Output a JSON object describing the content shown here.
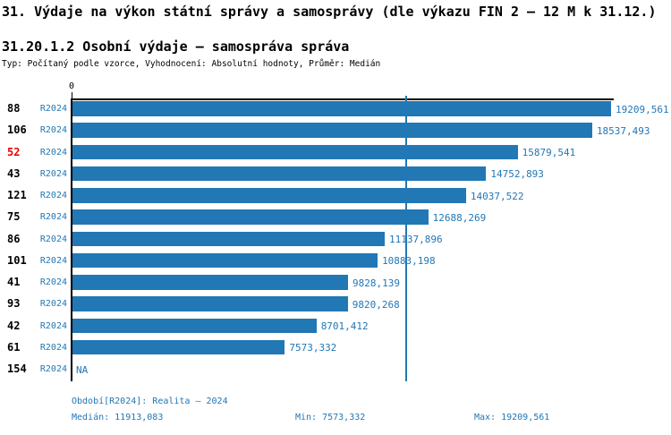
{
  "title": "31. Výdaje na výkon státní správy a samosprávy (dle výkazu FIN 2 – 12 M k 31.12.)",
  "subtitle": "31.20.1.2 Osobní výdaje – samospráva správa",
  "meta_line": "Typ: Počítaný podle vzorce, Vyhodnocení: Absolutní hodnoty, Průměr: Medián",
  "colors": {
    "bar_blue": "#2277b5",
    "text_blue": "#2277b5",
    "highlight_red": "#e60000",
    "axis_black": "#000000"
  },
  "chart_data": {
    "type": "bar",
    "orientation": "horizontal",
    "grid": false,
    "legend": "none",
    "zero_label": "0",
    "period_label": "R2024",
    "categories": [
      "88",
      "106",
      "52",
      "43",
      "121",
      "75",
      "86",
      "101",
      "41",
      "93",
      "42",
      "61",
      "154"
    ],
    "highlighted_category": "52",
    "values": [
      19209.561,
      18537.493,
      15879.541,
      14752.893,
      14037.522,
      12688.269,
      11137.896,
      10883.198,
      9828.139,
      9820.268,
      8701.412,
      7573.332,
      null
    ],
    "value_labels": [
      "19209,561",
      "18537,493",
      "15879,541",
      "14752,893",
      "14037,522",
      "12688,269",
      "11137,896",
      "10883,198",
      "9828,139",
      "9820,268",
      "8701,412",
      "7573,332",
      "NA"
    ],
    "xlim": [
      0,
      19209.561
    ],
    "median": 11913.083,
    "median_label": "11913,083"
  },
  "footer": {
    "period_line": "Období[R2024]: Realita – 2024",
    "median": "Medián: 11913,083",
    "min": "Min: 7573,332",
    "max": "Max: 19209,561"
  }
}
